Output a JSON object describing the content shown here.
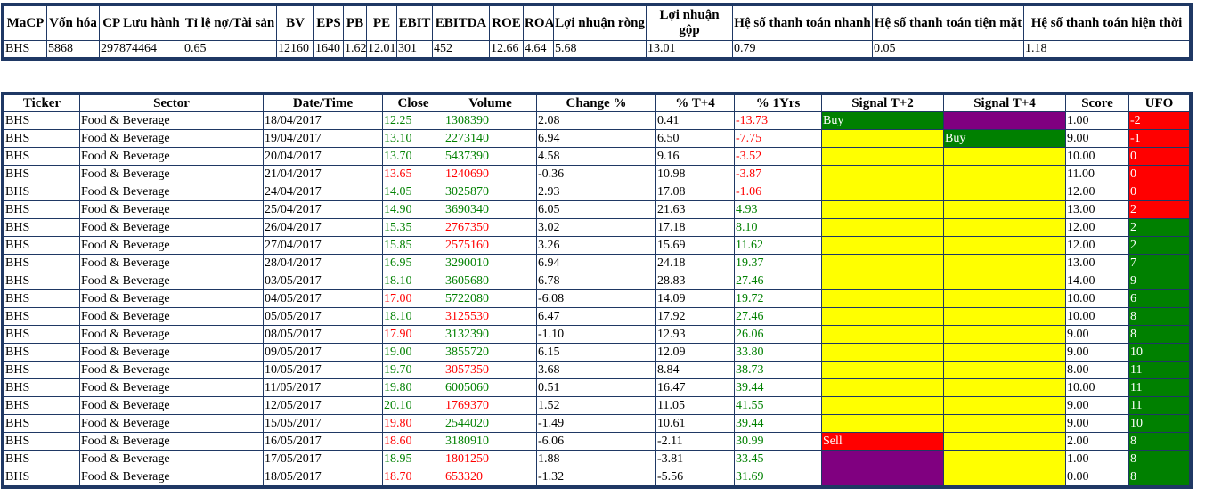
{
  "colors": {
    "green": "#008000",
    "red": "#ff0000",
    "yellow": "#ffff00",
    "purple": "#800080",
    "border": "#1f3864"
  },
  "summary": {
    "headers": [
      "MaCP",
      "Vốn hóa",
      "CP Lưu hành",
      "Tỉ lệ nợ/Tài sản",
      "BV",
      "EPS",
      "PB",
      "PE",
      "EBIT",
      "EBITDA",
      "ROE",
      "ROA",
      "Lợi nhuận ròng",
      "Lợi nhuận gộp",
      "Hệ số thanh toán nhanh",
      "Hệ số thanh toán tiện mặt",
      "Hệ số thanh toán hiện thời"
    ],
    "row": [
      "BHS",
      "5868",
      "297874464",
      "0.65",
      "12160",
      "1640",
      "1.62",
      "12.01",
      "301",
      "452",
      "12.66",
      "4.64",
      "5.68",
      "13.01",
      "0.79",
      "0.05",
      "1.18"
    ]
  },
  "main": {
    "headers": [
      "Ticker",
      "Sector",
      "Date/Time",
      "Close",
      "Volume",
      "Change %",
      "% T+4",
      "% 1Yrs",
      "Signal T+2",
      "Signal T+4",
      "Score",
      "UFO"
    ],
    "rows": [
      {
        "ticker": "BHS",
        "sector": "Food & Beverage",
        "date": "18/04/2017",
        "close": "12.25",
        "close_c": "g",
        "volume": "1308390",
        "volume_c": "g",
        "change": "2.08",
        "t4": "0.41",
        "y1": "-13.73",
        "y1_c": "r",
        "s2": "Buy",
        "s2_bg": "green",
        "s4": "",
        "s4_bg": "purple",
        "score": "1.00",
        "ufo": "-2",
        "ufo_bg": "red"
      },
      {
        "ticker": "BHS",
        "sector": "Food & Beverage",
        "date": "19/04/2017",
        "close": "13.10",
        "close_c": "g",
        "volume": "2273140",
        "volume_c": "g",
        "change": "6.94",
        "t4": "6.50",
        "y1": "-7.75",
        "y1_c": "r",
        "s2": "",
        "s2_bg": "yellow",
        "s4": "Buy",
        "s4_bg": "green",
        "score": "9.00",
        "ufo": "-1",
        "ufo_bg": "red"
      },
      {
        "ticker": "BHS",
        "sector": "Food & Beverage",
        "date": "20/04/2017",
        "close": "13.70",
        "close_c": "g",
        "volume": "5437390",
        "volume_c": "g",
        "change": "4.58",
        "t4": "9.16",
        "y1": "-3.52",
        "y1_c": "r",
        "s2": "",
        "s2_bg": "yellow",
        "s4": "",
        "s4_bg": "yellow",
        "score": "10.00",
        "ufo": "0",
        "ufo_bg": "red"
      },
      {
        "ticker": "BHS",
        "sector": "Food & Beverage",
        "date": "21/04/2017",
        "close": "13.65",
        "close_c": "r",
        "volume": "1240690",
        "volume_c": "r",
        "change": "-0.36",
        "t4": "10.98",
        "y1": "-3.87",
        "y1_c": "r",
        "s2": "",
        "s2_bg": "yellow",
        "s4": "",
        "s4_bg": "yellow",
        "score": "11.00",
        "ufo": "0",
        "ufo_bg": "red"
      },
      {
        "ticker": "BHS",
        "sector": "Food & Beverage",
        "date": "24/04/2017",
        "close": "14.05",
        "close_c": "g",
        "volume": "3025870",
        "volume_c": "g",
        "change": "2.93",
        "t4": "17.08",
        "y1": "-1.06",
        "y1_c": "r",
        "s2": "",
        "s2_bg": "yellow",
        "s4": "",
        "s4_bg": "yellow",
        "score": "12.00",
        "ufo": "0",
        "ufo_bg": "red"
      },
      {
        "ticker": "BHS",
        "sector": "Food & Beverage",
        "date": "25/04/2017",
        "close": "14.90",
        "close_c": "g",
        "volume": "3690340",
        "volume_c": "g",
        "change": "6.05",
        "t4": "21.63",
        "y1": "4.93",
        "y1_c": "g",
        "s2": "",
        "s2_bg": "yellow",
        "s4": "",
        "s4_bg": "yellow",
        "score": "13.00",
        "ufo": "2",
        "ufo_bg": "red"
      },
      {
        "ticker": "BHS",
        "sector": "Food & Beverage",
        "date": "26/04/2017",
        "close": "15.35",
        "close_c": "g",
        "volume": "2767350",
        "volume_c": "r",
        "change": "3.02",
        "t4": "17.18",
        "y1": "8.10",
        "y1_c": "g",
        "s2": "",
        "s2_bg": "yellow",
        "s4": "",
        "s4_bg": "yellow",
        "score": "12.00",
        "ufo": "2",
        "ufo_bg": "green"
      },
      {
        "ticker": "BHS",
        "sector": "Food & Beverage",
        "date": "27/04/2017",
        "close": "15.85",
        "close_c": "g",
        "volume": "2575160",
        "volume_c": "r",
        "change": "3.26",
        "t4": "15.69",
        "y1": "11.62",
        "y1_c": "g",
        "s2": "",
        "s2_bg": "yellow",
        "s4": "",
        "s4_bg": "yellow",
        "score": "12.00",
        "ufo": "2",
        "ufo_bg": "green"
      },
      {
        "ticker": "BHS",
        "sector": "Food & Beverage",
        "date": "28/04/2017",
        "close": "16.95",
        "close_c": "g",
        "volume": "3290010",
        "volume_c": "g",
        "change": "6.94",
        "t4": "24.18",
        "y1": "19.37",
        "y1_c": "g",
        "s2": "",
        "s2_bg": "yellow",
        "s4": "",
        "s4_bg": "yellow",
        "score": "13.00",
        "ufo": "7",
        "ufo_bg": "green"
      },
      {
        "ticker": "BHS",
        "sector": "Food & Beverage",
        "date": "03/05/2017",
        "close": "18.10",
        "close_c": "g",
        "volume": "3605680",
        "volume_c": "g",
        "change": "6.78",
        "t4": "28.83",
        "y1": "27.46",
        "y1_c": "g",
        "s2": "",
        "s2_bg": "yellow",
        "s4": "",
        "s4_bg": "yellow",
        "score": "14.00",
        "ufo": "9",
        "ufo_bg": "green"
      },
      {
        "ticker": "BHS",
        "sector": "Food & Beverage",
        "date": "04/05/2017",
        "close": "17.00",
        "close_c": "r",
        "volume": "5722080",
        "volume_c": "g",
        "change": "-6.08",
        "t4": "14.09",
        "y1": "19.72",
        "y1_c": "g",
        "s2": "",
        "s2_bg": "yellow",
        "s4": "",
        "s4_bg": "yellow",
        "score": "10.00",
        "ufo": "6",
        "ufo_bg": "green"
      },
      {
        "ticker": "BHS",
        "sector": "Food & Beverage",
        "date": "05/05/2017",
        "close": "18.10",
        "close_c": "g",
        "volume": "3125530",
        "volume_c": "r",
        "change": "6.47",
        "t4": "17.92",
        "y1": "27.46",
        "y1_c": "g",
        "s2": "",
        "s2_bg": "yellow",
        "s4": "",
        "s4_bg": "yellow",
        "score": "10.00",
        "ufo": "8",
        "ufo_bg": "green"
      },
      {
        "ticker": "BHS",
        "sector": "Food & Beverage",
        "date": "08/05/2017",
        "close": "17.90",
        "close_c": "r",
        "volume": "3132390",
        "volume_c": "g",
        "change": "-1.10",
        "t4": "12.93",
        "y1": "26.06",
        "y1_c": "g",
        "s2": "",
        "s2_bg": "yellow",
        "s4": "",
        "s4_bg": "yellow",
        "score": "9.00",
        "ufo": "8",
        "ufo_bg": "green"
      },
      {
        "ticker": "BHS",
        "sector": "Food & Beverage",
        "date": "09/05/2017",
        "close": "19.00",
        "close_c": "g",
        "volume": "3855720",
        "volume_c": "g",
        "change": "6.15",
        "t4": "12.09",
        "y1": "33.80",
        "y1_c": "g",
        "s2": "",
        "s2_bg": "yellow",
        "s4": "",
        "s4_bg": "yellow",
        "score": "9.00",
        "ufo": "10",
        "ufo_bg": "green"
      },
      {
        "ticker": "BHS",
        "sector": "Food & Beverage",
        "date": "10/05/2017",
        "close": "19.70",
        "close_c": "g",
        "volume": "3057350",
        "volume_c": "r",
        "change": "3.68",
        "t4": "8.84",
        "y1": "38.73",
        "y1_c": "g",
        "s2": "",
        "s2_bg": "yellow",
        "s4": "",
        "s4_bg": "yellow",
        "score": "8.00",
        "ufo": "11",
        "ufo_bg": "green"
      },
      {
        "ticker": "BHS",
        "sector": "Food & Beverage",
        "date": "11/05/2017",
        "close": "19.80",
        "close_c": "g",
        "volume": "6005060",
        "volume_c": "g",
        "change": "0.51",
        "t4": "16.47",
        "y1": "39.44",
        "y1_c": "g",
        "s2": "",
        "s2_bg": "yellow",
        "s4": "",
        "s4_bg": "yellow",
        "score": "10.00",
        "ufo": "11",
        "ufo_bg": "green"
      },
      {
        "ticker": "BHS",
        "sector": "Food & Beverage",
        "date": "12/05/2017",
        "close": "20.10",
        "close_c": "g",
        "volume": "1769370",
        "volume_c": "r",
        "change": "1.52",
        "t4": "11.05",
        "y1": "41.55",
        "y1_c": "g",
        "s2": "",
        "s2_bg": "yellow",
        "s4": "",
        "s4_bg": "yellow",
        "score": "9.00",
        "ufo": "11",
        "ufo_bg": "green"
      },
      {
        "ticker": "BHS",
        "sector": "Food & Beverage",
        "date": "15/05/2017",
        "close": "19.80",
        "close_c": "r",
        "volume": "2544020",
        "volume_c": "g",
        "change": "-1.49",
        "t4": "10.61",
        "y1": "39.44",
        "y1_c": "g",
        "s2": "",
        "s2_bg": "yellow",
        "s4": "",
        "s4_bg": "yellow",
        "score": "9.00",
        "ufo": "10",
        "ufo_bg": "green"
      },
      {
        "ticker": "BHS",
        "sector": "Food & Beverage",
        "date": "16/05/2017",
        "close": "18.60",
        "close_c": "r",
        "volume": "3180910",
        "volume_c": "g",
        "change": "-6.06",
        "t4": "-2.11",
        "y1": "30.99",
        "y1_c": "g",
        "s2": "Sell",
        "s2_bg": "red",
        "s4": "",
        "s4_bg": "yellow",
        "score": "2.00",
        "ufo": "8",
        "ufo_bg": "green"
      },
      {
        "ticker": "BHS",
        "sector": "Food & Beverage",
        "date": "17/05/2017",
        "close": "18.95",
        "close_c": "g",
        "volume": "1801250",
        "volume_c": "r",
        "change": "1.88",
        "t4": "-3.81",
        "y1": "33.45",
        "y1_c": "g",
        "s2": "",
        "s2_bg": "purple",
        "s4": "",
        "s4_bg": "yellow",
        "score": "1.00",
        "ufo": "8",
        "ufo_bg": "green"
      },
      {
        "ticker": "BHS",
        "sector": "Food & Beverage",
        "date": "18/05/2017",
        "close": "18.70",
        "close_c": "r",
        "volume": "653320",
        "volume_c": "r",
        "change": "-1.32",
        "t4": "-5.56",
        "y1": "31.69",
        "y1_c": "g",
        "s2": "",
        "s2_bg": "purple",
        "s4": "",
        "s4_bg": "yellow",
        "score": "0.00",
        "ufo": "8",
        "ufo_bg": "green"
      }
    ]
  }
}
